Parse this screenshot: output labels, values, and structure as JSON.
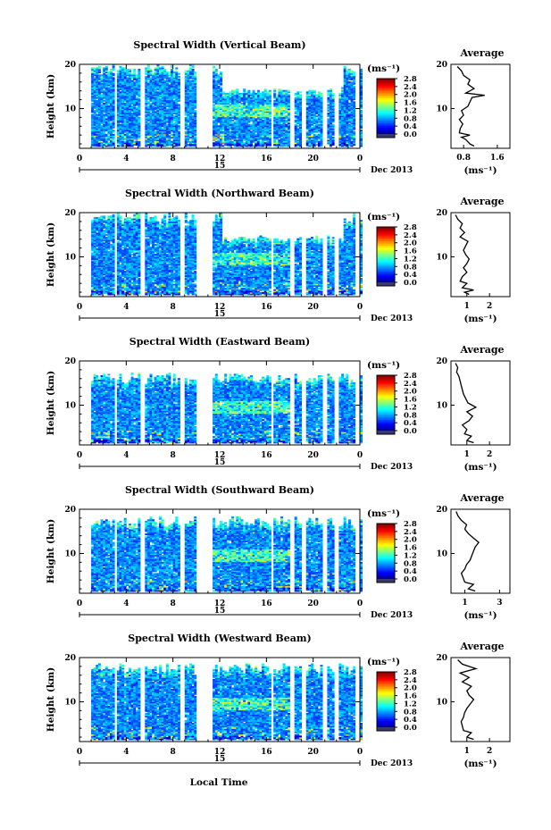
{
  "figure": {
    "xlabel": "Local Time",
    "date_label": "Dec 2013",
    "day_label": "15",
    "colorbar_units": "(ms⁻¹)",
    "colorbar_ticks": [
      "0.0",
      "0.4",
      "0.8",
      "1.2",
      "1.6",
      "2.0",
      "2.4",
      "2.8"
    ],
    "avg_title": "Average",
    "avg_xlabel": "(ms⁻¹)",
    "ylabel": "Height (km)"
  },
  "chart_data": [
    {
      "type": "heatmap",
      "title": "Spectral Width (Vertical Beam)",
      "xlabel": "Local Time",
      "ylabel": "Height (km)",
      "xlim": [
        0,
        24
      ],
      "ylim": [
        1,
        20
      ],
      "x_ticks": [
        "0",
        "4",
        "8",
        "12",
        "16",
        "20",
        "0"
      ],
      "y_ticks": [
        "20",
        "10"
      ],
      "colorbar": {
        "units": "(ms⁻¹)",
        "range": [
          0.0,
          2.8
        ],
        "ticks": [
          "0.0",
          "0.4",
          "0.8",
          "1.2",
          "1.6",
          "2.0",
          "2.4",
          "2.8"
        ]
      },
      "data_gaps_hours": [
        [
          0,
          1
        ],
        [
          3.0,
          3.3
        ],
        [
          5.3,
          5.6
        ],
        [
          8.7,
          9.0
        ],
        [
          9.9,
          11.4
        ],
        [
          16.3,
          16.6
        ],
        [
          18.0,
          18.3
        ],
        [
          19.0,
          19.3
        ],
        [
          20.8,
          21.1
        ],
        [
          21.8,
          22.1
        ],
        [
          23.5,
          24
        ]
      ],
      "average_profile": {
        "xlabel": "(ms⁻¹)",
        "x_ticks": [
          "0.8",
          "1.6"
        ],
        "xlim": [
          0.5,
          1.9
        ],
        "y_ticks": [
          "20",
          "10"
        ],
        "ylim": [
          1,
          20
        ],
        "points": [
          [
            1.05,
            1.5
          ],
          [
            0.95,
            2
          ],
          [
            0.85,
            3
          ],
          [
            0.75,
            3.5
          ],
          [
            0.95,
            4
          ],
          [
            0.7,
            4.5
          ],
          [
            0.72,
            5.5
          ],
          [
            0.78,
            6.5
          ],
          [
            0.7,
            7.5
          ],
          [
            0.8,
            8.5
          ],
          [
            0.75,
            9.5
          ],
          [
            0.9,
            10.5
          ],
          [
            0.95,
            11.5
          ],
          [
            1.0,
            12.5
          ],
          [
            1.3,
            13
          ],
          [
            0.85,
            13.5
          ],
          [
            1.05,
            14.5
          ],
          [
            0.9,
            15.5
          ],
          [
            0.95,
            16.5
          ],
          [
            0.8,
            17.5
          ],
          [
            0.75,
            18.5
          ],
          [
            0.65,
            19.5
          ]
        ]
      }
    },
    {
      "type": "heatmap",
      "title": "Spectral Width (Northward Beam)",
      "xlabel": "Local Time",
      "ylabel": "Height (km)",
      "xlim": [
        0,
        24
      ],
      "ylim": [
        1,
        20
      ],
      "x_ticks": [
        "0",
        "4",
        "8",
        "12",
        "16",
        "20",
        "0"
      ],
      "y_ticks": [
        "20",
        "10"
      ],
      "colorbar": {
        "units": "(ms⁻¹)",
        "range": [
          0.0,
          2.8
        ],
        "ticks": [
          "0.0",
          "0.4",
          "0.8",
          "1.2",
          "1.6",
          "2.0",
          "2.4",
          "2.8"
        ]
      },
      "data_gaps_hours": [
        [
          0,
          1
        ],
        [
          3.0,
          3.3
        ],
        [
          5.3,
          5.6
        ],
        [
          8.7,
          9.0
        ],
        [
          9.9,
          11.4
        ],
        [
          16.3,
          16.6
        ],
        [
          18.0,
          18.3
        ],
        [
          19.0,
          19.3
        ],
        [
          20.8,
          21.1
        ],
        [
          21.8,
          22.1
        ],
        [
          23.5,
          24
        ]
      ],
      "average_profile": {
        "xlabel": "(ms⁻¹)",
        "x_ticks": [
          "1",
          "2"
        ],
        "xlim": [
          0.3,
          2.9
        ],
        "y_ticks": [
          "20",
          "10"
        ],
        "ylim": [
          1,
          20
        ],
        "points": [
          [
            1.1,
            1.5
          ],
          [
            0.9,
            2
          ],
          [
            1.3,
            2.5
          ],
          [
            0.8,
            3
          ],
          [
            1.0,
            4
          ],
          [
            0.7,
            4.5
          ],
          [
            0.8,
            5.5
          ],
          [
            1.0,
            6.5
          ],
          [
            0.85,
            7.5
          ],
          [
            1.0,
            8.5
          ],
          [
            1.1,
            9.5
          ],
          [
            0.95,
            10.5
          ],
          [
            0.85,
            11.5
          ],
          [
            0.95,
            12.5
          ],
          [
            1.05,
            13.5
          ],
          [
            0.7,
            14.5
          ],
          [
            0.9,
            15.5
          ],
          [
            0.7,
            16.5
          ],
          [
            0.8,
            17.5
          ],
          [
            0.6,
            18.5
          ],
          [
            0.5,
            19.5
          ]
        ]
      }
    },
    {
      "type": "heatmap",
      "title": "Spectral Width (Eastward Beam)",
      "xlabel": "Local Time",
      "ylabel": "Height (km)",
      "xlim": [
        0,
        24
      ],
      "ylim": [
        1,
        20
      ],
      "x_ticks": [
        "0",
        "4",
        "8",
        "12",
        "16",
        "20",
        "0"
      ],
      "y_ticks": [
        "20",
        "10"
      ],
      "colorbar": {
        "units": "(ms⁻¹)",
        "range": [
          0.0,
          2.8
        ],
        "ticks": [
          "0.0",
          "0.4",
          "0.8",
          "1.2",
          "1.6",
          "2.0",
          "2.4",
          "2.8"
        ]
      },
      "data_gaps_hours": [
        [
          0,
          1
        ],
        [
          3.0,
          3.3
        ],
        [
          5.3,
          5.6
        ],
        [
          8.7,
          9.0
        ],
        [
          9.9,
          11.4
        ],
        [
          16.3,
          16.6
        ],
        [
          18.0,
          18.3
        ],
        [
          19.0,
          19.3
        ],
        [
          20.8,
          21.1
        ],
        [
          21.8,
          22.1
        ],
        [
          23.5,
          24
        ]
      ],
      "average_profile": {
        "xlabel": "(ms⁻¹)",
        "x_ticks": [
          "1",
          "2"
        ],
        "xlim": [
          0.3,
          2.9
        ],
        "y_ticks": [
          "20",
          "10"
        ],
        "ylim": [
          1,
          20
        ],
        "points": [
          [
            1.3,
            1.5
          ],
          [
            1.0,
            2
          ],
          [
            1.2,
            3
          ],
          [
            0.9,
            3.5
          ],
          [
            1.0,
            4.5
          ],
          [
            0.8,
            5.5
          ],
          [
            1.1,
            6.5
          ],
          [
            1.25,
            7.5
          ],
          [
            1.0,
            8.5
          ],
          [
            1.4,
            9.5
          ],
          [
            1.05,
            10.5
          ],
          [
            0.95,
            11.5
          ],
          [
            0.85,
            12.5
          ],
          [
            0.8,
            13.5
          ],
          [
            0.75,
            14.5
          ],
          [
            0.7,
            15.5
          ],
          [
            0.65,
            16.5
          ],
          [
            0.55,
            17.5
          ],
          [
            0.6,
            18.5
          ],
          [
            0.5,
            19.5
          ]
        ]
      }
    },
    {
      "type": "heatmap",
      "title": "Spectral Width (Southward Beam)",
      "xlabel": "Local Time",
      "ylabel": "Height (km)",
      "xlim": [
        0,
        24
      ],
      "ylim": [
        1,
        20
      ],
      "x_ticks": [
        "0",
        "4",
        "8",
        "12",
        "16",
        "20",
        "0"
      ],
      "y_ticks": [
        "20",
        "10"
      ],
      "colorbar": {
        "units": "(ms⁻¹)",
        "range": [
          0.0,
          2.8
        ],
        "ticks": [
          "0.0",
          "0.4",
          "0.8",
          "1.2",
          "1.6",
          "2.0",
          "2.4",
          "2.8"
        ]
      },
      "data_gaps_hours": [
        [
          0,
          1
        ],
        [
          3.0,
          3.3
        ],
        [
          5.3,
          5.6
        ],
        [
          8.7,
          9.0
        ],
        [
          9.9,
          11.4
        ],
        [
          16.3,
          16.6
        ],
        [
          18.0,
          18.3
        ],
        [
          19.0,
          19.3
        ],
        [
          20.8,
          21.1
        ],
        [
          21.8,
          22.1
        ],
        [
          23.5,
          24
        ]
      ],
      "average_profile": {
        "xlabel": "(ms⁻¹)",
        "x_ticks": [
          "1",
          "3"
        ],
        "xlim": [
          0.2,
          3.6
        ],
        "y_ticks": [
          "20",
          "10"
        ],
        "ylim": [
          1,
          20
        ],
        "points": [
          [
            1.6,
            1.5
          ],
          [
            1.2,
            2
          ],
          [
            1.5,
            3
          ],
          [
            1.0,
            3.5
          ],
          [
            0.9,
            4.5
          ],
          [
            0.8,
            5.5
          ],
          [
            1.0,
            6.5
          ],
          [
            1.1,
            7.5
          ],
          [
            1.3,
            8.5
          ],
          [
            1.4,
            9.5
          ],
          [
            1.5,
            10.5
          ],
          [
            1.6,
            11.5
          ],
          [
            1.8,
            12.5
          ],
          [
            1.5,
            13.5
          ],
          [
            1.2,
            14.5
          ],
          [
            1.0,
            15.5
          ],
          [
            1.1,
            16.5
          ],
          [
            0.8,
            17.5
          ],
          [
            0.6,
            18.5
          ],
          [
            0.5,
            19.5
          ]
        ]
      }
    },
    {
      "type": "heatmap",
      "title": "Spectral Width (Westward Beam)",
      "xlabel": "Local Time",
      "ylabel": "Height (km)",
      "xlim": [
        0,
        24
      ],
      "ylim": [
        1,
        20
      ],
      "x_ticks": [
        "0",
        "4",
        "8",
        "12",
        "16",
        "20",
        "0"
      ],
      "y_ticks": [
        "20",
        "10"
      ],
      "colorbar": {
        "units": "(ms⁻¹)",
        "range": [
          0.0,
          2.8
        ],
        "ticks": [
          "0.0",
          "0.4",
          "0.8",
          "1.2",
          "1.6",
          "2.0",
          "2.4",
          "2.8"
        ]
      },
      "data_gaps_hours": [
        [
          0,
          1
        ],
        [
          3.0,
          3.3
        ],
        [
          5.3,
          5.6
        ],
        [
          8.7,
          9.0
        ],
        [
          9.9,
          11.4
        ],
        [
          16.3,
          16.6
        ],
        [
          18.0,
          18.3
        ],
        [
          19.0,
          19.3
        ],
        [
          20.8,
          21.1
        ],
        [
          21.8,
          22.1
        ],
        [
          23.5,
          24
        ]
      ],
      "average_profile": {
        "xlabel": "(ms⁻¹)",
        "x_ticks": [
          "1",
          "2"
        ],
        "xlim": [
          0.3,
          2.9
        ],
        "y_ticks": [
          "20",
          "10"
        ],
        "ylim": [
          1,
          20
        ],
        "points": [
          [
            1.3,
            1.5
          ],
          [
            1.0,
            2
          ],
          [
            1.2,
            3
          ],
          [
            0.85,
            3.5
          ],
          [
            0.8,
            4.5
          ],
          [
            0.75,
            5.5
          ],
          [
            0.85,
            6.5
          ],
          [
            0.9,
            7.5
          ],
          [
            1.0,
            8.5
          ],
          [
            1.15,
            9.5
          ],
          [
            1.3,
            10.5
          ],
          [
            1.1,
            11.5
          ],
          [
            1.0,
            12.5
          ],
          [
            1.2,
            13.5
          ],
          [
            0.8,
            14.5
          ],
          [
            1.1,
            15.5
          ],
          [
            0.7,
            16.5
          ],
          [
            1.4,
            17.5
          ],
          [
            0.8,
            18.5
          ],
          [
            0.6,
            19.5
          ]
        ]
      }
    }
  ]
}
